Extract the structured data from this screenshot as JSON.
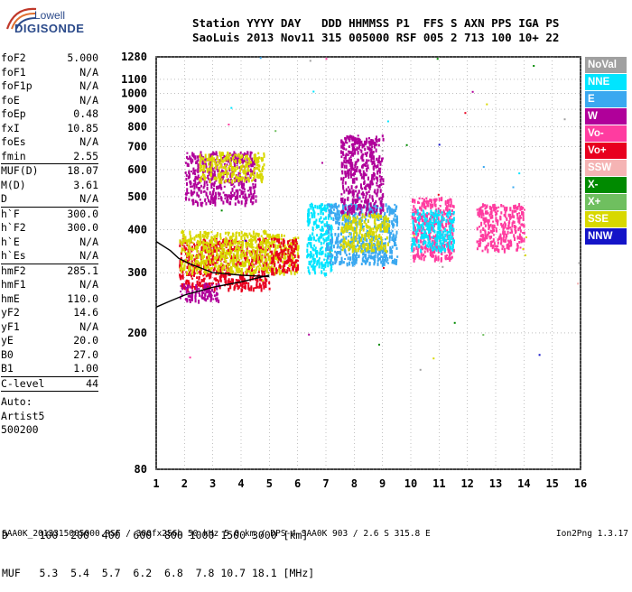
{
  "logo": {
    "top": "Lowell",
    "bottom": "DIGISONDE"
  },
  "header": {
    "line1": "Station YYYY DAY   DDD HHMMSS P1  FFS S AXN PPS IGA PS",
    "line2": "SaoLuis 2013 Nov11 315 005000 RSF 005 2 713 100 10+ 22"
  },
  "params": {
    "group1": [
      {
        "name": "foF2",
        "value": "5.000"
      },
      {
        "name": "foF1",
        "value": "N/A"
      },
      {
        "name": "foF1p",
        "value": "N/A"
      },
      {
        "name": "foE",
        "value": "N/A"
      },
      {
        "name": "foEp",
        "value": "0.48"
      },
      {
        "name": "fxI",
        "value": "10.85"
      },
      {
        "name": "foEs",
        "value": "N/A"
      },
      {
        "name": "fmin",
        "value": "2.55"
      }
    ],
    "group2": [
      {
        "name": "MUF(D)",
        "value": "18.07"
      },
      {
        "name": "M(D)",
        "value": "3.61"
      },
      {
        "name": "D",
        "value": "N/A"
      }
    ],
    "group3": [
      {
        "name": "h`F",
        "value": "300.0"
      },
      {
        "name": "h`F2",
        "value": "300.0"
      },
      {
        "name": "h`E",
        "value": "N/A"
      },
      {
        "name": "h`Es",
        "value": "N/A"
      }
    ],
    "group4": [
      {
        "name": "hmF2",
        "value": "285.1"
      },
      {
        "name": "hmF1",
        "value": "N/A"
      },
      {
        "name": "hmE",
        "value": "110.0"
      },
      {
        "name": "yF2",
        "value": "14.6"
      },
      {
        "name": "yF1",
        "value": "N/A"
      },
      {
        "name": "yE",
        "value": "20.0"
      },
      {
        "name": "B0",
        "value": "27.0"
      },
      {
        "name": "B1",
        "value": "1.00"
      }
    ],
    "clevel": {
      "name": "C-level",
      "value": "44"
    },
    "auto": [
      "Auto:",
      "Artist5",
      "500200"
    ]
  },
  "legend": [
    {
      "label": "NoVal",
      "color": "#a0a0a0"
    },
    {
      "label": "NNE",
      "color": "#00e5ff"
    },
    {
      "label": "E",
      "color": "#3aa8f0"
    },
    {
      "label": "W",
      "color": "#b0009a"
    },
    {
      "label": "Vo-",
      "color": "#ff3ca0"
    },
    {
      "label": "Vo+",
      "color": "#e8001e"
    },
    {
      "label": "SSW",
      "color": "#f5b4b4"
    },
    {
      "label": "X-",
      "color": "#008a00"
    },
    {
      "label": "X+",
      "color": "#6fbf5f"
    },
    {
      "label": "SSE",
      "color": "#d8d800"
    },
    {
      "label": "NNW",
      "color": "#1414c8"
    }
  ],
  "bottom": {
    "d_row": "D     100  200  400  600  800 1000 1500 3000 [km]",
    "muf_row": "MUF   5.3  5.4  5.7  6.2  6.8  7.8 10.7 18.1 [MHz]",
    "footer": "SAA0K_2013315005000.RSF / 300fx256h 50 kHz 5.0 km / DPS-4 SAA0K 903 / 2.6 S 315.8 E",
    "version": "Ion2Png 1.3.17"
  },
  "chart_data": {
    "type": "scatter",
    "title": "",
    "xlabel": "",
    "ylabel": "",
    "x_ticks": [
      1,
      2,
      3,
      4,
      5,
      6,
      7,
      8,
      9,
      10,
      11,
      12,
      13,
      14,
      15,
      16
    ],
    "y_ticks": [
      80,
      200,
      300,
      400,
      500,
      600,
      700,
      800,
      900,
      1000,
      1100,
      1280
    ],
    "xlim": [
      1,
      16
    ],
    "ylim": [
      80,
      1280
    ],
    "y_scale": "log",
    "grid": true,
    "clusters": [
      {
        "x": [
          1.8,
          5.0
        ],
        "y": [
          270,
          380
        ],
        "series": "Vo+"
      },
      {
        "x": [
          1.8,
          5.0
        ],
        "y": [
          300,
          400
        ],
        "series": "SSE"
      },
      {
        "x": [
          1.8,
          3.2
        ],
        "y": [
          250,
          280
        ],
        "series": "W"
      },
      {
        "x": [
          2.0,
          4.5
        ],
        "y": [
          480,
          680
        ],
        "series": "W"
      },
      {
        "x": [
          2.5,
          4.8
        ],
        "y": [
          560,
          680
        ],
        "series": "SSE"
      },
      {
        "x": [
          5.0,
          6.0
        ],
        "y": [
          300,
          390
        ],
        "series": "SSE"
      },
      {
        "x": [
          5.0,
          6.0
        ],
        "y": [
          300,
          380
        ],
        "series": "Vo+"
      },
      {
        "x": [
          6.3,
          7.2
        ],
        "y": [
          300,
          480
        ],
        "series": "NNE"
      },
      {
        "x": [
          7.0,
          9.5
        ],
        "y": [
          320,
          480
        ],
        "series": "E"
      },
      {
        "x": [
          7.5,
          9.2
        ],
        "y": [
          350,
          450
        ],
        "series": "SSE"
      },
      {
        "x": [
          7.5,
          9.0
        ],
        "y": [
          450,
          760
        ],
        "series": "W"
      },
      {
        "x": [
          10.0,
          11.5
        ],
        "y": [
          330,
          500
        ],
        "series": "Vo-"
      },
      {
        "x": [
          12.3,
          14.0
        ],
        "y": [
          350,
          480
        ],
        "series": "Vo-"
      },
      {
        "x": [
          10.0,
          11.5
        ],
        "y": [
          350,
          460
        ],
        "series": "NNE"
      }
    ],
    "trace_lines": [
      {
        "x": [
          1.0,
          1.5,
          2.0,
          3.0,
          4.0,
          5.0
        ],
        "y": [
          238,
          248,
          258,
          272,
          282,
          295
        ]
      },
      {
        "x": [
          1.0,
          1.5,
          1.8,
          2.2,
          3.0,
          4.0,
          5.0
        ],
        "y": [
          370,
          348,
          330,
          318,
          300,
          295,
          292
        ]
      }
    ]
  }
}
